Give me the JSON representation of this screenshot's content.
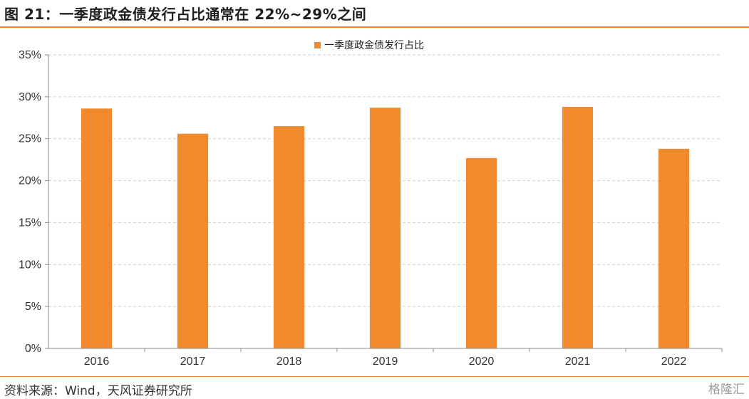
{
  "header": {
    "title": "图 21：一季度政金债发行占比通常在 22%~29%之间"
  },
  "footer": {
    "source": "资料来源：Wind，天风证券研究所",
    "watermark": "格隆汇"
  },
  "colors": {
    "accent": "#f08a2c",
    "bar": "#f08a2c",
    "grid": "#d0d0d0"
  },
  "chart_data": {
    "type": "bar",
    "categories": [
      "2016",
      "2017",
      "2018",
      "2019",
      "2020",
      "2021",
      "2022"
    ],
    "series": [
      {
        "name": "一季度政金债发行占比",
        "values": [
          28.6,
          25.6,
          26.5,
          28.7,
          22.7,
          28.8,
          23.8
        ]
      }
    ],
    "ylim": [
      0,
      35
    ],
    "yticks": [
      "0%",
      "5%",
      "10%",
      "15%",
      "20%",
      "25%",
      "30%",
      "35%"
    ],
    "grid": true,
    "legend": "top-center",
    "xlabel": "",
    "ylabel": ""
  }
}
